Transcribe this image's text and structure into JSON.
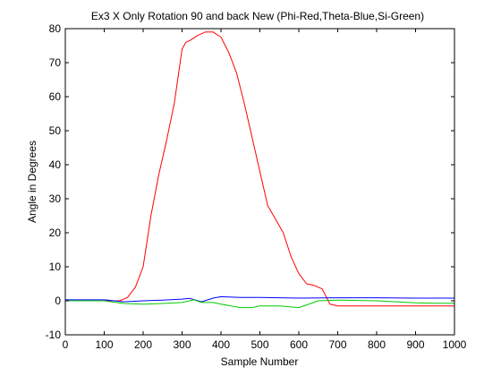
{
  "chart_data": {
    "type": "line",
    "title": "Ex3 X Only Rotation 90 and back New (Phi-Red,Theta-Blue,Si-Green)",
    "xlabel": "Sample Number",
    "ylabel": "Angle in Degrees",
    "xlim": [
      0,
      1000
    ],
    "ylim": [
      -10,
      80
    ],
    "xticks": [
      0,
      100,
      200,
      300,
      400,
      500,
      600,
      700,
      800,
      900,
      1000
    ],
    "yticks": [
      -10,
      0,
      10,
      20,
      30,
      40,
      50,
      60,
      70,
      80
    ],
    "grid": false,
    "legend": "none",
    "series": [
      {
        "color": "#ff0000",
        "x": [
          0,
          100,
          140,
          160,
          180,
          200,
          220,
          240,
          260,
          280,
          300,
          310,
          320,
          340,
          360,
          380,
          400,
          420,
          440,
          460,
          480,
          500,
          520,
          540,
          560,
          580,
          600,
          620,
          640,
          660,
          680,
          700,
          720,
          800,
          900,
          1000
        ],
        "y": [
          0,
          0,
          0,
          1,
          4,
          10,
          25,
          37,
          47,
          58,
          74,
          76,
          76.5,
          78,
          79,
          79,
          77.5,
          73,
          67,
          58,
          48,
          38,
          28,
          24,
          20,
          13,
          8,
          5,
          4.5,
          3.5,
          -1,
          -1.5,
          -1.5,
          -1.5,
          -1.5,
          -1.5
        ]
      },
      {
        "color": "#0000ff",
        "x": [
          0,
          100,
          150,
          200,
          250,
          300,
          320,
          350,
          380,
          400,
          420,
          450,
          500,
          600,
          700,
          800,
          900,
          1000
        ],
        "y": [
          0.3,
          0.3,
          -0.3,
          0,
          0.2,
          0.5,
          0.7,
          -0.3,
          0.8,
          1.2,
          1.1,
          1.0,
          1.0,
          0.8,
          0.9,
          0.9,
          0.8,
          0.8
        ],
        "y_note": ""
      },
      {
        "color": "#00cc00",
        "x": [
          0,
          100,
          150,
          200,
          250,
          300,
          330,
          350,
          380,
          400,
          450,
          480,
          500,
          550,
          600,
          620,
          650,
          700,
          800,
          900,
          950,
          1000
        ],
        "y": [
          0,
          0,
          -0.8,
          -1,
          -0.8,
          -0.5,
          0.3,
          -0.5,
          -0.5,
          -1,
          -2,
          -2,
          -1.5,
          -1.5,
          -2,
          -1.2,
          0,
          0.2,
          0,
          -0.6,
          -0.7,
          -0.7
        ]
      }
    ]
  }
}
